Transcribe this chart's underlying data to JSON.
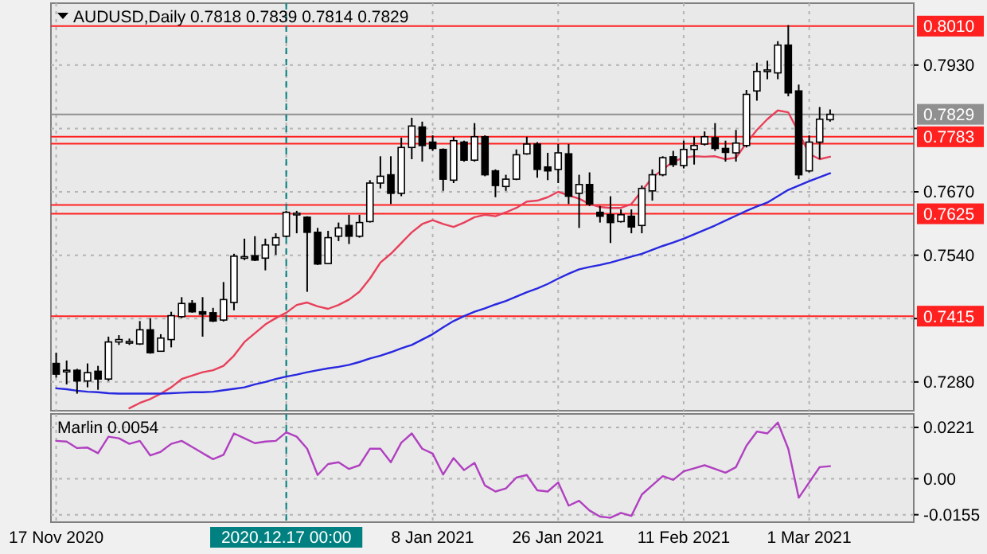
{
  "chart_data": [
    {
      "type": "candlestick",
      "title": "AUDUSD,Daily 0.7818 0.7839 0.7814 0.7829",
      "tick_labels": "y",
      "grid": true,
      "categories": [
        "17 Nov 2020",
        null,
        null,
        null,
        null,
        null,
        null,
        null,
        null,
        null,
        null,
        null,
        null,
        null,
        null,
        null,
        null,
        null,
        null,
        null,
        null,
        null,
        "2020.12.17 00:00",
        null,
        null,
        null,
        null,
        null,
        null,
        null,
        null,
        null,
        null,
        null,
        null,
        null,
        "8 Jan 2021",
        null,
        null,
        null,
        null,
        null,
        null,
        null,
        null,
        null,
        null,
        null,
        "26 Jan 2021",
        null,
        null,
        null,
        null,
        null,
        null,
        null,
        null,
        null,
        null,
        null,
        "11 Feb 2021",
        null,
        null,
        null,
        null,
        null,
        null,
        null,
        null,
        null,
        null,
        null,
        "1 Mar 2021",
        null,
        null
      ],
      "ohlc": [
        [
          0.7318,
          0.734,
          0.7289,
          0.7296
        ],
        [
          0.7302,
          0.7324,
          0.7275,
          0.7304
        ],
        [
          0.7304,
          0.7307,
          0.7256,
          0.7282
        ],
        [
          0.7282,
          0.7318,
          0.7269,
          0.7299
        ],
        [
          0.7302,
          0.7313,
          0.7264,
          0.7286
        ],
        [
          0.7286,
          0.7373,
          0.7282,
          0.7362
        ],
        [
          0.7362,
          0.7376,
          0.7356,
          0.7367
        ],
        [
          0.7362,
          0.7369,
          0.7356,
          0.7363
        ],
        [
          0.7358,
          0.7405,
          0.7356,
          0.7387
        ],
        [
          0.7387,
          0.7411,
          0.7338,
          0.734
        ],
        [
          0.7343,
          0.7378,
          0.7342,
          0.737
        ],
        [
          0.7367,
          0.7424,
          0.7351,
          0.7416
        ],
        [
          0.7414,
          0.7454,
          0.7411,
          0.7441
        ],
        [
          0.7441,
          0.7448,
          0.7422,
          0.7424
        ],
        [
          0.7424,
          0.7454,
          0.7373,
          0.7419
        ],
        [
          0.7422,
          0.7432,
          0.7403,
          0.7405
        ],
        [
          0.7407,
          0.7485,
          0.7404,
          0.7449
        ],
        [
          0.7443,
          0.7543,
          0.7427,
          0.7538
        ],
        [
          0.7536,
          0.7574,
          0.753,
          0.7537
        ],
        [
          0.7539,
          0.7579,
          0.7528,
          0.753
        ],
        [
          0.7534,
          0.7574,
          0.7509,
          0.7561
        ],
        [
          0.7561,
          0.7585,
          0.7541,
          0.7576
        ],
        [
          0.7579,
          0.7631,
          0.7577,
          0.7628
        ],
        [
          0.7624,
          0.7631,
          0.7585,
          0.7626
        ],
        [
          0.7618,
          0.762,
          0.7465,
          0.7587
        ],
        [
          0.7587,
          0.7596,
          0.752,
          0.7522
        ],
        [
          0.7523,
          0.759,
          0.7522,
          0.7576
        ],
        [
          0.7579,
          0.7607,
          0.7569,
          0.7596
        ],
        [
          0.7601,
          0.7623,
          0.7563,
          0.7579
        ],
        [
          0.7579,
          0.7623,
          0.7576,
          0.7607
        ],
        [
          0.7609,
          0.7694,
          0.7607,
          0.7688
        ],
        [
          0.7688,
          0.7743,
          0.7677,
          0.7702
        ],
        [
          0.7705,
          0.7743,
          0.7645,
          0.7667
        ],
        [
          0.7667,
          0.7781,
          0.7661,
          0.7761
        ],
        [
          0.7761,
          0.7822,
          0.7737,
          0.7805
        ],
        [
          0.7803,
          0.7814,
          0.7732,
          0.7765
        ],
        [
          0.7772,
          0.7786,
          0.7754,
          0.7759
        ],
        [
          0.7757,
          0.7759,
          0.7672,
          0.7696
        ],
        [
          0.7694,
          0.7783,
          0.7688,
          0.7775
        ],
        [
          0.7772,
          0.7775,
          0.7732,
          0.7735
        ],
        [
          0.7735,
          0.7811,
          0.7732,
          0.7783
        ],
        [
          0.7783,
          0.7786,
          0.7702,
          0.7705
        ],
        [
          0.7713,
          0.7716,
          0.7659,
          0.7683
        ],
        [
          0.7681,
          0.7705,
          0.7672,
          0.7696
        ],
        [
          0.7696,
          0.7757,
          0.7694,
          0.7746
        ],
        [
          0.7748,
          0.7783,
          0.7746,
          0.7768
        ],
        [
          0.7768,
          0.7772,
          0.7699,
          0.7716
        ],
        [
          0.7721,
          0.775,
          0.7694,
          0.7713
        ],
        [
          0.7716,
          0.7768,
          0.7688,
          0.775
        ],
        [
          0.7748,
          0.7768,
          0.7645,
          0.7661
        ],
        [
          0.7667,
          0.7705,
          0.7596,
          0.7685
        ],
        [
          0.7685,
          0.771,
          0.7641,
          0.7645
        ],
        [
          0.7628,
          0.7641,
          0.7607,
          0.762
        ],
        [
          0.7623,
          0.7661,
          0.7565,
          0.7607
        ],
        [
          0.7609,
          0.7634,
          0.7607,
          0.7623
        ],
        [
          0.762,
          0.7634,
          0.7585,
          0.7598
        ],
        [
          0.7601,
          0.7683,
          0.7585,
          0.7677
        ],
        [
          0.7672,
          0.7716,
          0.7652,
          0.7705
        ],
        [
          0.7705,
          0.7743,
          0.7702,
          0.774
        ],
        [
          0.7742,
          0.7754,
          0.7721,
          0.7726
        ],
        [
          0.7724,
          0.7775,
          0.7718,
          0.7757
        ],
        [
          0.7757,
          0.7783,
          0.7726,
          0.7765
        ],
        [
          0.7768,
          0.7794,
          0.7765,
          0.7783
        ],
        [
          0.7781,
          0.7811,
          0.7754,
          0.7759
        ],
        [
          0.7759,
          0.7775,
          0.7732,
          0.7751
        ],
        [
          0.775,
          0.7797,
          0.7732,
          0.777
        ],
        [
          0.7765,
          0.7879,
          0.7761,
          0.787
        ],
        [
          0.7877,
          0.7935,
          0.7857,
          0.7917
        ],
        [
          0.7918,
          0.7939,
          0.7901,
          0.792
        ],
        [
          0.7914,
          0.7979,
          0.7901,
          0.7971
        ],
        [
          0.7971,
          0.8012,
          0.7866,
          0.7873
        ],
        [
          0.7877,
          0.789,
          0.7696,
          0.7705
        ],
        [
          0.7713,
          0.7786,
          0.771,
          0.7772
        ],
        [
          0.7772,
          0.7844,
          0.7737,
          0.7819
        ],
        [
          0.7818,
          0.7839,
          0.7814,
          0.7829
        ]
      ],
      "series": [
        {
          "type": "line",
          "color": "#e8405a",
          "values": [
            null,
            null,
            null,
            null,
            null,
            null,
            null,
            0.7226,
            0.7237,
            0.7245,
            0.7256,
            0.7269,
            0.7286,
            0.7293,
            0.73,
            0.7304,
            0.7313,
            0.7334,
            0.7362,
            0.738,
            0.7398,
            0.7411,
            0.7422,
            0.7438,
            0.7443,
            0.7435,
            0.743,
            0.7438,
            0.7449,
            0.7465,
            0.7492,
            0.7525,
            0.7543,
            0.7565,
            0.7587,
            0.7604,
            0.7612,
            0.7604,
            0.7598,
            0.7607,
            0.7618,
            0.7623,
            0.762,
            0.7628,
            0.7637,
            0.765,
            0.7652,
            0.7659,
            0.767,
            0.7663,
            0.7656,
            0.7645,
            0.7639,
            0.7637,
            0.7637,
            0.7645,
            0.7672,
            0.7699,
            0.7716,
            0.7732,
            0.774,
            0.7743,
            0.7742,
            0.7743,
            0.7737,
            0.774,
            0.777,
            0.7797,
            0.7819,
            0.7837,
            0.7833,
            0.7792,
            0.7748,
            0.7737,
            0.7742
          ]
        },
        {
          "type": "line",
          "color": "#2828e0",
          "values": [
            0.7267,
            0.7265,
            0.7262,
            0.726,
            0.7259,
            0.7257,
            0.7256,
            0.7256,
            0.7256,
            0.7256,
            0.7256,
            0.7257,
            0.7258,
            0.7259,
            0.7259,
            0.726,
            0.7263,
            0.7266,
            0.7269,
            0.7275,
            0.728,
            0.7286,
            0.7291,
            0.7295,
            0.73,
            0.7304,
            0.7308,
            0.7311,
            0.7315,
            0.7321,
            0.7328,
            0.7334,
            0.7341,
            0.7349,
            0.7356,
            0.7367,
            0.7378,
            0.7392,
            0.7405,
            0.7415,
            0.7424,
            0.7431,
            0.7439,
            0.7446,
            0.7455,
            0.7464,
            0.7472,
            0.7481,
            0.7492,
            0.7502,
            0.7511,
            0.7516,
            0.752,
            0.7525,
            0.7531,
            0.7537,
            0.7543,
            0.7551,
            0.7559,
            0.7566,
            0.7574,
            0.7583,
            0.7592,
            0.7601,
            0.7611,
            0.7621,
            0.7631,
            0.764,
            0.7648,
            0.7661,
            0.7674,
            0.7683,
            0.7692,
            0.77,
            0.7708
          ]
        }
      ],
      "ylim": [
        0.7221,
        0.8057
      ],
      "yticks": [
        {
          "value": 0.728,
          "label": "0.7280"
        },
        {
          "value": 0.741,
          "label": null
        },
        {
          "value": 0.754,
          "label": "0.7540"
        },
        {
          "value": 0.767,
          "label": "0.7670"
        },
        {
          "value": 0.78,
          "label": null
        },
        {
          "value": 0.793,
          "label": "0.7930"
        }
      ],
      "ref_lines": [
        {
          "axis": "y",
          "value": 0.801,
          "label": "0.8010",
          "color": "#ff2020"
        },
        {
          "axis": "y",
          "value": 0.7829,
          "label": "0.7829",
          "color": "#909090"
        },
        {
          "axis": "y",
          "value": 0.7783,
          "label": "0.7783",
          "color": "#ff2020"
        },
        {
          "axis": "y",
          "value": 0.7769,
          "color": "#ff2020"
        },
        {
          "axis": "y",
          "value": 0.7643,
          "color": "#ff2020"
        },
        {
          "axis": "y",
          "value": 0.7625,
          "label": "0.7625",
          "color": "#ff2020"
        },
        {
          "axis": "y",
          "value": 0.7415,
          "label": "0.7415",
          "color": "#ff2020"
        },
        {
          "axis": "x",
          "value": "2020.12.17 00:00",
          "color": "#008080",
          "line_style": "dashed"
        }
      ]
    },
    {
      "type": "line",
      "title": "Marlin 0.0054",
      "grid": true,
      "categories": [
        "17 Nov 2020",
        null,
        null,
        null,
        null,
        null,
        null,
        null,
        null,
        null,
        null,
        null,
        null,
        null,
        null,
        null,
        null,
        null,
        null,
        null,
        null,
        null,
        "2020.12.17 00:00",
        null,
        null,
        null,
        null,
        null,
        null,
        null,
        null,
        null,
        null,
        null,
        null,
        null,
        "8 Jan 2021",
        null,
        null,
        null,
        null,
        null,
        null,
        null,
        null,
        null,
        null,
        null,
        "26 Jan 2021",
        null,
        null,
        null,
        null,
        null,
        null,
        null,
        null,
        null,
        null,
        null,
        "11 Feb 2021",
        null,
        null,
        null,
        null,
        null,
        null,
        null,
        null,
        null,
        null,
        null,
        "1 Mar 2021",
        null,
        null
      ],
      "series": [
        {
          "color": "#b040c0",
          "values": [
            0.0163,
            0.016,
            0.0132,
            0.0134,
            0.011,
            0.0181,
            0.0174,
            0.015,
            0.0163,
            0.01,
            0.0116,
            0.015,
            0.0163,
            0.0137,
            0.011,
            0.0084,
            0.0103,
            0.0195,
            0.0174,
            0.0153,
            0.016,
            0.0163,
            0.02,
            0.0181,
            0.0129,
            0.0016,
            0.0063,
            0.0071,
            0.0042,
            0.0058,
            0.0129,
            0.0129,
            0.0071,
            0.0155,
            0.0195,
            0.0129,
            0.0108,
            0.0018,
            0.0089,
            0.0037,
            0.0068,
            -0.0029,
            -0.0055,
            -0.0042,
            0.0005,
            0.0016,
            -0.005,
            -0.0055,
            -0.0016,
            -0.0116,
            -0.0095,
            -0.0137,
            -0.0163,
            -0.0168,
            -0.0147,
            -0.016,
            -0.0068,
            -0.0028,
            0.0011,
            -0.0005,
            0.0032,
            0.0045,
            0.0058,
            0.0042,
            0.0026,
            0.005,
            0.0142,
            0.0203,
            0.0195,
            0.0242,
            0.0129,
            -0.0082,
            -0.0016,
            0.005,
            0.0054
          ]
        }
      ],
      "ylim": [
        -0.0187,
        0.0279
      ],
      "yticks": [
        {
          "value": -0.0155,
          "label": "-0.0155"
        },
        {
          "value": 0,
          "label": "0.00"
        },
        {
          "value": 0.0221,
          "label": "0.0221"
        }
      ],
      "ref_lines": [
        {
          "axis": "x",
          "value": "2020.12.17 00:00",
          "color": "#008080",
          "line_style": "dashed"
        }
      ]
    }
  ]
}
